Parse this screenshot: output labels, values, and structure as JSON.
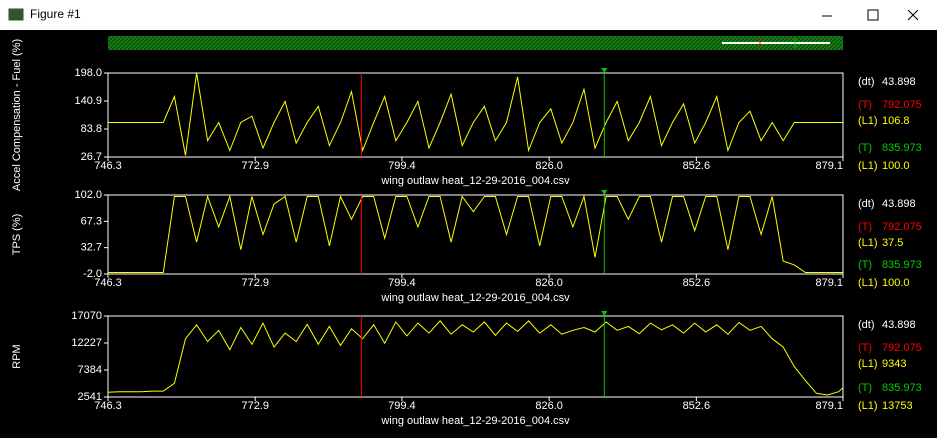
{
  "window": {
    "title": "Figure #1"
  },
  "chart_data": [
    {
      "type": "line",
      "ylabel": "Accel Compensation - Fuel (%)",
      "xlabel": "wing outlaw heat_12-29-2016_004.csv",
      "x": [
        746.3,
        748.3,
        750.3,
        752.3,
        754.3,
        756.3,
        758.3,
        760.3,
        762.3,
        764.3,
        766.3,
        768.3,
        770.3,
        772.3,
        774.3,
        776.3,
        778.3,
        780.3,
        782.3,
        784.3,
        786.3,
        788.3,
        790.3,
        792.3,
        794.3,
        796.3,
        798.3,
        800.3,
        802.3,
        804.3,
        806.3,
        808.3,
        810.3,
        812.3,
        814.3,
        816.3,
        818.3,
        820.3,
        822.3,
        824.3,
        826.3,
        828.3,
        830.3,
        832.3,
        834.3,
        836.3,
        838.3,
        840.3,
        842.3,
        844.3,
        846.3,
        848.3,
        850.3,
        852.3,
        854.3,
        856.3,
        858.3,
        860.3,
        862.3,
        864.3,
        866.3,
        868.3,
        870.3,
        872.3,
        874.3,
        876.3,
        878.3,
        879.1
      ],
      "series": [
        {
          "color": "#ffff00",
          "values": [
            97,
            97,
            97,
            97,
            97,
            97,
            150,
            30,
            198,
            60,
            97,
            40,
            97,
            110,
            45,
            97,
            140,
            55,
            97,
            130,
            50,
            97,
            160,
            40,
            97,
            150,
            60,
            97,
            140,
            45,
            97,
            155,
            50,
            97,
            130,
            60,
            97,
            190,
            40,
            97,
            125,
            55,
            97,
            165,
            45,
            97,
            140,
            60,
            97,
            150,
            50,
            97,
            135,
            55,
            97,
            150,
            40,
            97,
            120,
            60,
            97,
            60,
            97,
            97,
            97,
            97,
            97,
            97
          ]
        }
      ],
      "xlim": [
        746.3,
        879.1
      ],
      "xticks": [
        746.3,
        772.9,
        799.4,
        {
          "value": 826,
          "label": "826.0"
        },
        852.6,
        879.1
      ],
      "ylim": [
        26.7,
        198
      ],
      "yticks": [
        26.7,
        83.8,
        140.9,
        {
          "value": 198,
          "label": "198.0"
        }
      ],
      "dt": {
        "label": "(dt)",
        "value": 43.898
      },
      "cursors": [
        {
          "label": "(T)",
          "x": 792.075,
          "color": "#ff0000",
          "readout_label": "(L1)",
          "readout": 106.8,
          "readout_text": "106.8"
        },
        {
          "label": "(T)",
          "x": 835.973,
          "color": "#00cc00",
          "readout_label": "(L1)",
          "readout": 100,
          "readout_text": "100.0"
        }
      ]
    },
    {
      "type": "line",
      "ylabel": "TPS (%)",
      "xlabel": "wing outlaw heat_12-29-2016_004.csv",
      "x": [
        746.3,
        748.3,
        750.3,
        752.3,
        754.3,
        756.3,
        758.3,
        760.3,
        762.3,
        764.3,
        766.3,
        768.3,
        770.3,
        772.3,
        774.3,
        776.3,
        778.3,
        780.3,
        782.3,
        784.3,
        786.3,
        788.3,
        790.3,
        792.3,
        794.3,
        796.3,
        798.3,
        800.3,
        802.3,
        804.3,
        806.3,
        808.3,
        810.3,
        812.3,
        814.3,
        816.3,
        818.3,
        820.3,
        822.3,
        824.3,
        826.3,
        828.3,
        830.3,
        832.3,
        834.3,
        836.3,
        838.3,
        840.3,
        842.3,
        844.3,
        846.3,
        848.3,
        850.3,
        852.3,
        854.3,
        856.3,
        858.3,
        860.3,
        862.3,
        864.3,
        866.3,
        868.3,
        870.3,
        872.3,
        874.3,
        876.3,
        878.3,
        879.1
      ],
      "series": [
        {
          "color": "#ffff00",
          "values": [
            0,
            0,
            0,
            0,
            0,
            0,
            100,
            100,
            40,
            100,
            60,
            100,
            30,
            100,
            50,
            90,
            100,
            40,
            100,
            100,
            35,
            100,
            70,
            100,
            100,
            45,
            100,
            100,
            60,
            100,
            100,
            40,
            100,
            80,
            100,
            100,
            50,
            100,
            100,
            35,
            100,
            100,
            60,
            100,
            20,
            100,
            100,
            70,
            100,
            100,
            40,
            100,
            100,
            55,
            100,
            100,
            30,
            100,
            100,
            50,
            100,
            15,
            10,
            0,
            0,
            0,
            0,
            0
          ]
        }
      ],
      "xlim": [
        746.3,
        879.1
      ],
      "xticks": [
        746.3,
        772.9,
        799.4,
        {
          "value": 826,
          "label": "826.0"
        },
        852.6,
        879.1
      ],
      "ylim": [
        -2,
        102
      ],
      "yticks": [
        {
          "value": -2,
          "label": "-2.0"
        },
        32.7,
        67.3,
        {
          "value": 102,
          "label": "102.0"
        }
      ],
      "dt": {
        "label": "(dt)",
        "value": 43.898
      },
      "cursors": [
        {
          "label": "(T)",
          "x": 792.075,
          "color": "#ff0000",
          "readout_label": "(L1)",
          "readout": 37.5,
          "readout_text": "37.5"
        },
        {
          "label": "(T)",
          "x": 835.973,
          "color": "#00cc00",
          "readout_label": "(L1)",
          "readout": 100,
          "readout_text": "100.0"
        }
      ]
    },
    {
      "type": "line",
      "ylabel": "RPM",
      "xlabel": "wing outlaw heat_12-29-2016_004.csv",
      "x": [
        746.3,
        748.3,
        750.3,
        752.3,
        754.3,
        756.3,
        758.3,
        760.3,
        762.3,
        764.3,
        766.3,
        768.3,
        770.3,
        772.3,
        774.3,
        776.3,
        778.3,
        780.3,
        782.3,
        784.3,
        786.3,
        788.3,
        790.3,
        792.3,
        794.3,
        796.3,
        798.3,
        800.3,
        802.3,
        804.3,
        806.3,
        808.3,
        810.3,
        812.3,
        814.3,
        816.3,
        818.3,
        820.3,
        822.3,
        824.3,
        826.3,
        828.3,
        830.3,
        832.3,
        834.3,
        836.3,
        838.3,
        840.3,
        842.3,
        844.3,
        846.3,
        848.3,
        850.3,
        852.3,
        854.3,
        856.3,
        858.3,
        860.3,
        862.3,
        864.3,
        866.3,
        868.3,
        870.3,
        872.3,
        874.3,
        876.3,
        878.3,
        879.1
      ],
      "series": [
        {
          "color": "#ffff00",
          "values": [
            3400,
            3500,
            3500,
            3500,
            3600,
            3600,
            5000,
            13000,
            15500,
            12500,
            14500,
            11000,
            15000,
            12000,
            15800,
            11500,
            14000,
            12500,
            15600,
            12000,
            15200,
            11800,
            14800,
            13000,
            15500,
            12200,
            16000,
            13500,
            15800,
            14000,
            16200,
            13800,
            15500,
            14200,
            16000,
            13600,
            15800,
            14300,
            16200,
            14000,
            15500,
            13800,
            14500,
            15000,
            14200,
            16000,
            14500,
            15200,
            13900,
            15800,
            14600,
            15500,
            14000,
            15800,
            14200,
            15500,
            13800,
            15900,
            14500,
            15200,
            13000,
            11500,
            8000,
            5500,
            3200,
            2900,
            3500,
            4200
          ]
        }
      ],
      "xlim": [
        746.3,
        879.1
      ],
      "xticks": [
        746.3,
        772.9,
        799.4,
        {
          "value": 826,
          "label": "826.0"
        },
        852.6,
        879.1
      ],
      "ylim": [
        2541,
        17070
      ],
      "yticks": [
        2541,
        7384,
        12227,
        17070
      ],
      "dt": {
        "label": "(dt)",
        "value": 43.898
      },
      "cursors": [
        {
          "label": "(T)",
          "x": 792.075,
          "color": "#ff0000",
          "readout_label": "(L1)",
          "readout": 9343,
          "readout_text": "9343"
        },
        {
          "label": "(T)",
          "x": 835.973,
          "color": "#00cc00",
          "readout_label": "(L1)",
          "readout": 13753,
          "readout_text": "13753"
        }
      ]
    }
  ]
}
